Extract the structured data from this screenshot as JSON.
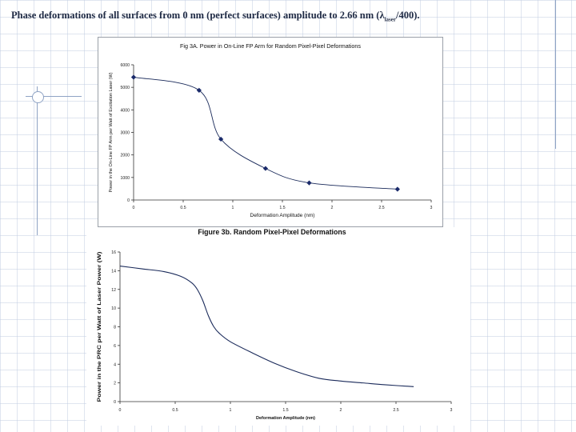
{
  "slide": {
    "title_main": "Phase deformations of all surfaces from 0 nm (perfect surfaces) amplitude to 2.66 nm (λ",
    "title_sub": "laser",
    "title_end": "/400)."
  },
  "chart_data": [
    {
      "type": "line",
      "title": "Fig 3A. Power in On-Line FP Arm for Random Pixel-Pixel Deformations",
      "xlabel": "Deformation Amplitude (nm)",
      "ylabel": "Power in the On-Line FP Arm per Watt of Excitation Laser (W)",
      "xlim": [
        0,
        3
      ],
      "ylim": [
        0,
        6000
      ],
      "xticks": [
        "0",
        "0.5",
        "1",
        "1.5",
        "2",
        "2.5",
        "3"
      ],
      "yticks": [
        "0",
        "1000",
        "2000",
        "3000",
        "4000",
        "5000",
        "6000"
      ],
      "grid": false,
      "markers": true,
      "series": [
        {
          "x": [
            0,
            0.66,
            0.88,
            1.33,
            1.77,
            2.66
          ],
          "y": [
            5450,
            4870,
            2700,
            1400,
            760,
            480
          ]
        }
      ]
    },
    {
      "type": "line",
      "title": "Figure 3b. Random Pixel-Pixel Deformations",
      "xlabel": "Deformation Amplitude (nm)",
      "ylabel": "Power in the PRC per Watt of Laser Power (W)",
      "xlim": [
        0,
        3
      ],
      "ylim": [
        0,
        16
      ],
      "xticks": [
        "0",
        "0.5",
        "1",
        "1.5",
        "2",
        "2.5",
        "3"
      ],
      "yticks": [
        "0",
        "2",
        "4",
        "6",
        "8",
        "10",
        "12",
        "14",
        "16"
      ],
      "grid": false,
      "markers": false,
      "series": [
        {
          "x": [
            0,
            0.2,
            0.4,
            0.55,
            0.65,
            0.7,
            0.75,
            0.8,
            0.85,
            0.9,
            1.0,
            1.2,
            1.4,
            1.6,
            1.8,
            2.0,
            2.2,
            2.4,
            2.66
          ],
          "y": [
            14.5,
            14.2,
            13.9,
            13.4,
            12.7,
            12.0,
            10.8,
            9.2,
            8.0,
            7.3,
            6.4,
            5.2,
            4.1,
            3.2,
            2.5,
            2.2,
            2.0,
            1.8,
            1.6
          ]
        }
      ]
    }
  ]
}
